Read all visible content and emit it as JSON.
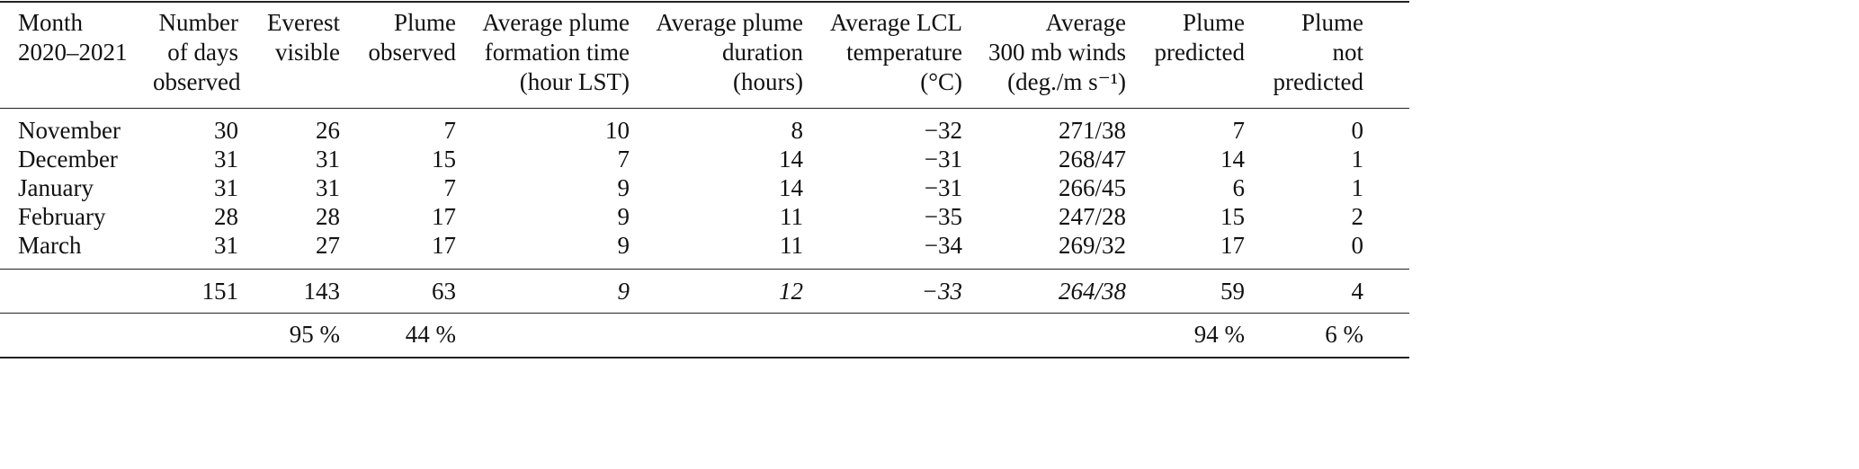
{
  "table": {
    "header": [
      [
        "Month",
        "2020–2021"
      ],
      [
        "Number",
        "of days",
        "observed"
      ],
      [
        "Everest",
        "visible"
      ],
      [
        "Plume",
        "observed"
      ],
      [
        "Average plume",
        "formation time",
        "(hour LST)"
      ],
      [
        "Average plume",
        "duration",
        "(hours)"
      ],
      [
        "Average LCL",
        "temperature",
        "(°C)"
      ],
      [
        "Average",
        "300 mb winds",
        "(deg./m s⁻¹)"
      ],
      [
        "Plume",
        "predicted"
      ],
      [
        "Plume",
        "not",
        "predicted"
      ]
    ],
    "rows": [
      [
        "November",
        "30",
        "26",
        "7",
        "10",
        "8",
        "−32",
        "271/38",
        "7",
        "0"
      ],
      [
        "December",
        "31",
        "31",
        "15",
        "7",
        "14",
        "−31",
        "268/47",
        "14",
        "1"
      ],
      [
        "January",
        "31",
        "31",
        "7",
        "9",
        "14",
        "−31",
        "266/45",
        "6",
        "1"
      ],
      [
        "February",
        "28",
        "28",
        "17",
        "9",
        "11",
        "−35",
        "247/28",
        "15",
        "2"
      ],
      [
        "March",
        "31",
        "27",
        "17",
        "9",
        "11",
        "−34",
        "269/32",
        "17",
        "0"
      ]
    ],
    "totals": [
      "151",
      "143",
      "63",
      "9",
      "12",
      "−33",
      "264/38",
      "59",
      "4"
    ],
    "percentages": [
      "95 %",
      "44 %",
      "94 %",
      "6 %"
    ]
  }
}
